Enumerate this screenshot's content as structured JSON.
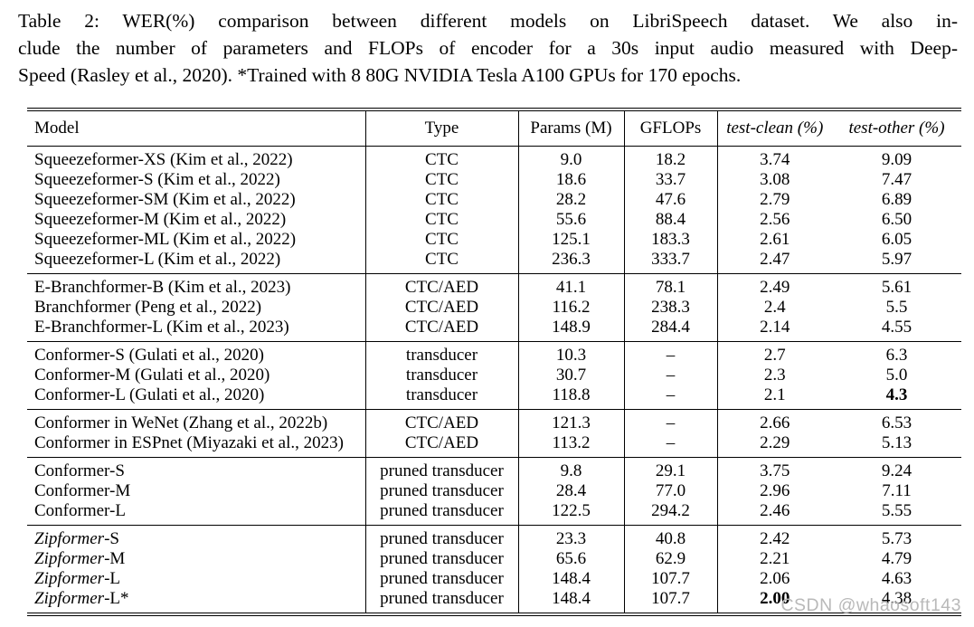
{
  "caption": {
    "lines": [
      "Table 2: WER(%) comparison between different models on LibriSpeech dataset. We also in-",
      "clude the number of parameters and FLOPs of encoder for a 30s input audio measured with Deep-",
      "Speed (Rasley et al., 2020). *Trained with 8 80G NVIDIA Tesla A100 GPUs for 170 epochs."
    ]
  },
  "table": {
    "columns": [
      "Model",
      "Type",
      "Params (M)",
      "GFLOPs",
      "test-clean (%)",
      "test-other (%)"
    ],
    "groups": [
      {
        "rows": [
          {
            "model_italic": "",
            "model": "Squeezeformer-XS (Kim et al., 2022)",
            "type": "CTC",
            "params": "9.0",
            "gflops": "18.2",
            "test_clean": "3.74",
            "test_other": "9.09"
          },
          {
            "model_italic": "",
            "model": "Squeezeformer-S (Kim et al., 2022)",
            "type": "CTC",
            "params": "18.6",
            "gflops": "33.7",
            "test_clean": "3.08",
            "test_other": "7.47"
          },
          {
            "model_italic": "",
            "model": "Squeezeformer-SM (Kim et al., 2022)",
            "type": "CTC",
            "params": "28.2",
            "gflops": "47.6",
            "test_clean": "2.79",
            "test_other": "6.89"
          },
          {
            "model_italic": "",
            "model": "Squeezeformer-M (Kim et al., 2022)",
            "type": "CTC",
            "params": "55.6",
            "gflops": "88.4",
            "test_clean": "2.56",
            "test_other": "6.50"
          },
          {
            "model_italic": "",
            "model": "Squeezeformer-ML (Kim et al., 2022)",
            "type": "CTC",
            "params": "125.1",
            "gflops": "183.3",
            "test_clean": "2.61",
            "test_other": "6.05"
          },
          {
            "model_italic": "",
            "model": "Squeezeformer-L (Kim et al., 2022)",
            "type": "CTC",
            "params": "236.3",
            "gflops": "333.7",
            "test_clean": "2.47",
            "test_other": "5.97"
          }
        ]
      },
      {
        "rows": [
          {
            "model_italic": "",
            "model": "E-Branchformer-B (Kim et al., 2023)",
            "type": "CTC/AED",
            "params": "41.1",
            "gflops": "78.1",
            "test_clean": "2.49",
            "test_other": "5.61"
          },
          {
            "model_italic": "",
            "model": "Branchformer (Peng et al., 2022)",
            "type": "CTC/AED",
            "params": "116.2",
            "gflops": "238.3",
            "test_clean": "2.4",
            "test_other": "5.5"
          },
          {
            "model_italic": "",
            "model": "E-Branchformer-L (Kim et al., 2023)",
            "type": "CTC/AED",
            "params": "148.9",
            "gflops": "284.4",
            "test_clean": "2.14",
            "test_other": "4.55"
          }
        ]
      },
      {
        "rows": [
          {
            "model_italic": "",
            "model": "Conformer-S (Gulati et al., 2020)",
            "type": "transducer",
            "params": "10.3",
            "gflops": "–",
            "test_clean": "2.7",
            "test_other": "6.3"
          },
          {
            "model_italic": "",
            "model": "Conformer-M (Gulati et al., 2020)",
            "type": "transducer",
            "params": "30.7",
            "gflops": "–",
            "test_clean": "2.3",
            "test_other": "5.0"
          },
          {
            "model_italic": "",
            "model": "Conformer-L (Gulati et al., 2020)",
            "type": "transducer",
            "params": "118.8",
            "gflops": "–",
            "test_clean": "2.1",
            "test_other": "4.3",
            "test_other_bold": true
          }
        ]
      },
      {
        "rows": [
          {
            "model_italic": "",
            "model": "Conformer in WeNet (Zhang et al., 2022b)",
            "type": "CTC/AED",
            "params": "121.3",
            "gflops": "–",
            "test_clean": "2.66",
            "test_other": "6.53"
          },
          {
            "model_italic": "",
            "model": "Conformer in ESPnet (Miyazaki et al., 2023)",
            "type": "CTC/AED",
            "params": "113.2",
            "gflops": "–",
            "test_clean": "2.29",
            "test_other": "5.13"
          }
        ]
      },
      {
        "rows": [
          {
            "model_italic": "",
            "model": "Conformer-S",
            "type": "pruned transducer",
            "params": "9.8",
            "gflops": "29.1",
            "test_clean": "3.75",
            "test_other": "9.24"
          },
          {
            "model_italic": "",
            "model": "Conformer-M",
            "type": "pruned transducer",
            "params": "28.4",
            "gflops": "77.0",
            "test_clean": "2.96",
            "test_other": "7.11"
          },
          {
            "model_italic": "",
            "model": "Conformer-L",
            "type": "pruned transducer",
            "params": "122.5",
            "gflops": "294.2",
            "test_clean": "2.46",
            "test_other": "5.55"
          }
        ]
      },
      {
        "rows": [
          {
            "model_italic": "Zipformer",
            "model": "-S",
            "type": "pruned transducer",
            "params": "23.3",
            "gflops": "40.8",
            "test_clean": "2.42",
            "test_other": "5.73"
          },
          {
            "model_italic": "Zipformer",
            "model": "-M",
            "type": "pruned transducer",
            "params": "65.6",
            "gflops": "62.9",
            "test_clean": "2.21",
            "test_other": "4.79"
          },
          {
            "model_italic": "Zipformer",
            "model": "-L",
            "type": "pruned transducer",
            "params": "148.4",
            "gflops": "107.7",
            "test_clean": "2.06",
            "test_other": "4.63"
          },
          {
            "model_italic": "Zipformer",
            "model": "-L*",
            "type": "pruned transducer",
            "params": "148.4",
            "gflops": "107.7",
            "test_clean": "2.00",
            "test_clean_bold": true,
            "test_other": "4.38"
          }
        ]
      }
    ]
  },
  "watermark": {
    "text": "CSDN @whaosoft143",
    "color": "#b9b9b9"
  }
}
